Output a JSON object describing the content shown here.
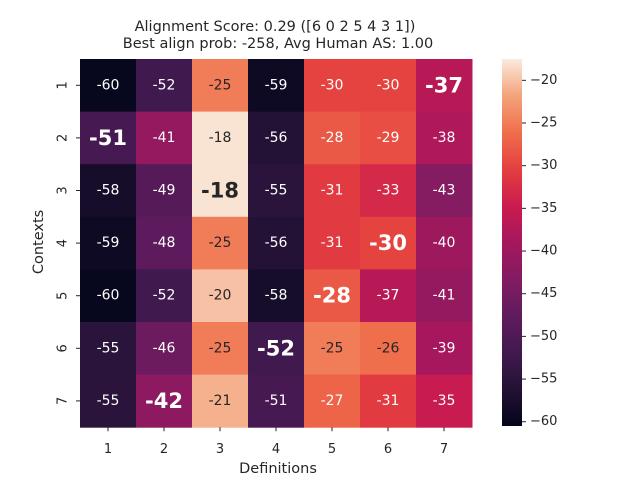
{
  "chart_data": {
    "type": "heatmap",
    "title": "Alignment Score: 0.29 ([6 0 2 5 4 3 1])",
    "subtitle": "Best align prob: -258, Avg Human AS: 1.00",
    "xlabel": "Definitions",
    "ylabel": "Contexts",
    "x_categories": [
      "1",
      "2",
      "3",
      "4",
      "5",
      "6",
      "7"
    ],
    "y_categories": [
      "1",
      "2",
      "3",
      "4",
      "5",
      "6",
      "7"
    ],
    "values": [
      [
        -60,
        -52,
        -25,
        -59,
        -30,
        -30,
        -37
      ],
      [
        -51,
        -41,
        -18,
        -56,
        -28,
        -29,
        -38
      ],
      [
        -58,
        -49,
        -18,
        -55,
        -31,
        -33,
        -43
      ],
      [
        -59,
        -48,
        -25,
        -56,
        -31,
        -30,
        -40
      ],
      [
        -60,
        -52,
        -20,
        -58,
        -28,
        -37,
        -41
      ],
      [
        -55,
        -46,
        -25,
        -52,
        -25,
        -26,
        -39
      ],
      [
        -55,
        -42,
        -21,
        -51,
        -27,
        -31,
        -35
      ]
    ],
    "highlighted_column_per_row": [
      6,
      0,
      2,
      5,
      4,
      3,
      1
    ],
    "colormap": "rocket",
    "vmin": -60.5,
    "vmax": -17.5,
    "colorbar_ticks": [
      "−20",
      "−25",
      "−30",
      "−35",
      "−40",
      "−45",
      "−50",
      "−55",
      "−60"
    ],
    "grid": false
  }
}
